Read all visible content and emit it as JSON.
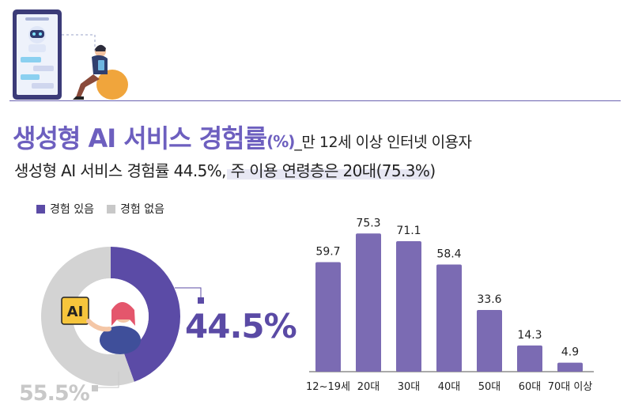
{
  "title": {
    "main": "생성형 AI 서비스 경험률",
    "unit": "(%)",
    "sub": "_만 12세 이상 인터넷 이용자"
  },
  "subtitle": "생성형 AI 서비스 경험률 44.5%, 주 이용 연령층은 20대(75.3%)",
  "colors": {
    "accent": "#5b4ba6",
    "bar": "#7b6bb3",
    "gray": "#d3d3d3",
    "rule": "#6a62b0"
  },
  "illustrations": {
    "top": "phone-chatbot-person-icon",
    "donut_center": "person-with-ai-chip-icon"
  },
  "chart_data": [
    {
      "type": "pie",
      "style": "donut",
      "legend_position": "top-left",
      "categories": [
        "경험 있음",
        "경험 없음"
      ],
      "values": [
        44.5,
        55.5
      ],
      "labels": [
        "44.5%",
        "55.5%"
      ],
      "colors": [
        "#5b4ba6",
        "#d3d3d3"
      ]
    },
    {
      "type": "bar",
      "categories": [
        "12~19세",
        "20대",
        "30대",
        "40대",
        "50대",
        "60대",
        "70대 이상"
      ],
      "values": [
        59.7,
        75.3,
        71.1,
        58.4,
        33.6,
        14.3,
        4.9
      ],
      "value_labels": [
        "59.7",
        "75.3",
        "71.1",
        "58.4",
        "33.6",
        "14.3",
        "4.9"
      ],
      "ylim": [
        0,
        80
      ],
      "grid": false,
      "color": "#7b6bb3"
    }
  ]
}
